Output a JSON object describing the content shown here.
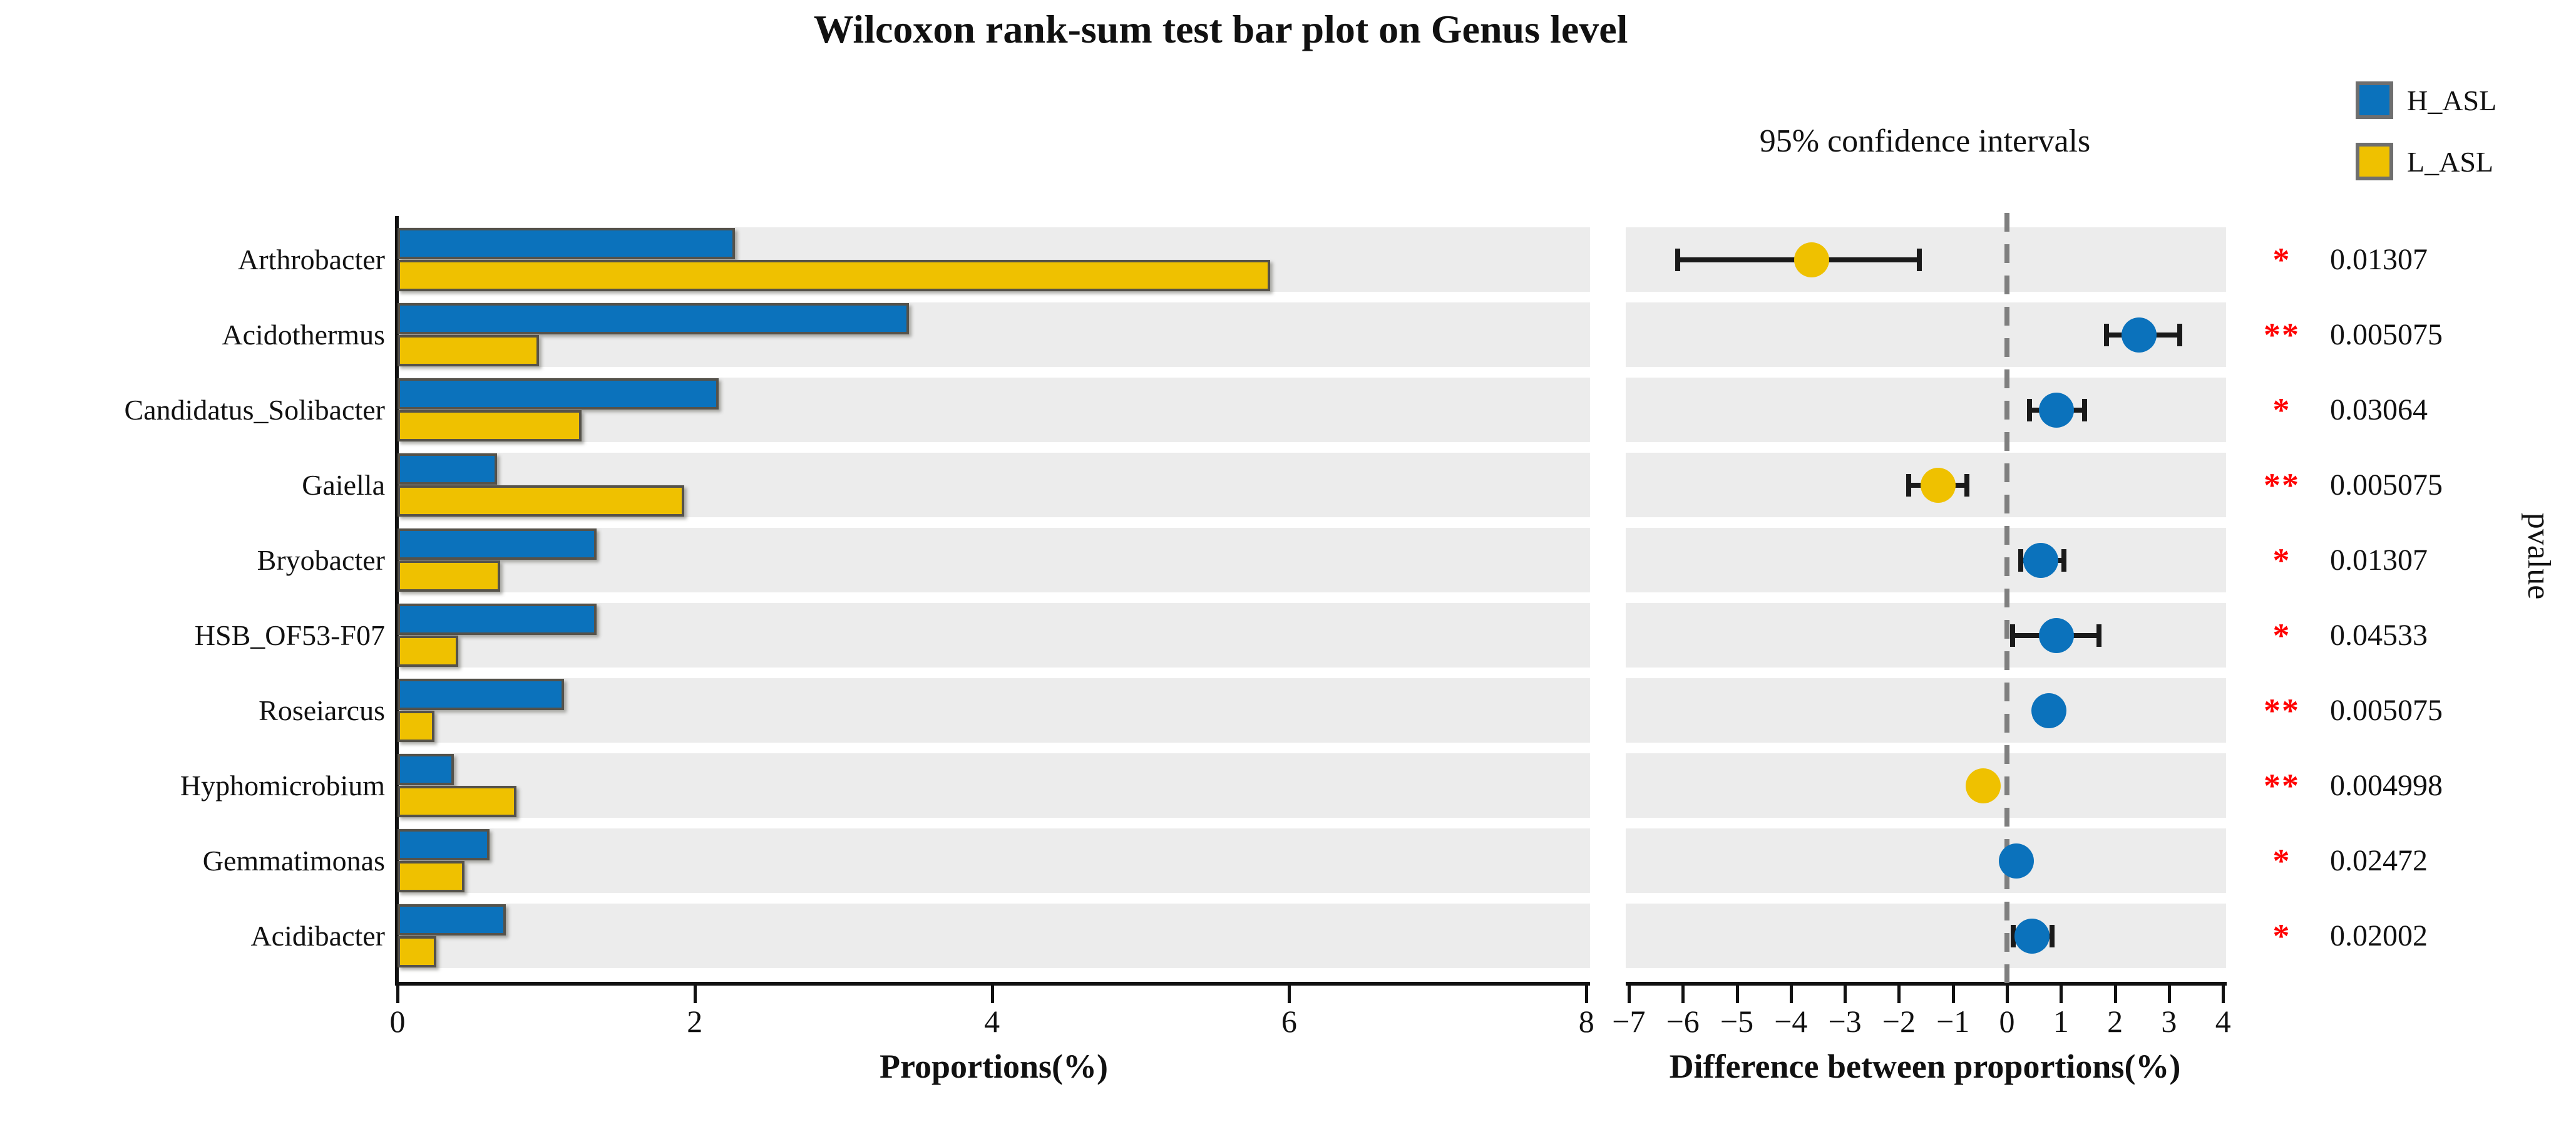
{
  "title": "Wilcoxon rank-sum test bar plot on Genus level",
  "colors": {
    "h_asl": "#0b72bc",
    "l_asl": "#efc100",
    "band": "#ececec",
    "significance": "#ff0000",
    "zero_line": "#7f7f7f",
    "bar_border": "#55524a"
  },
  "legend": {
    "items": [
      {
        "label": "H_ASL",
        "color": "#0b72bc"
      },
      {
        "label": "L_ASL",
        "color": "#efc100"
      }
    ]
  },
  "left_panel": {
    "xlabel": "Proportions(%)",
    "ticks": [
      0,
      2,
      4,
      6,
      8
    ],
    "xlim": [
      0,
      8
    ]
  },
  "right_panel": {
    "title": "95% confidence intervals",
    "xlabel": "Difference between proportions(%)",
    "ticks": [
      -7,
      -6,
      -5,
      -4,
      -3,
      -2,
      -1,
      0,
      1,
      2,
      3,
      4
    ],
    "xlim": [
      -7.1,
      4.1
    ]
  },
  "pvalue_axis_label": "pvalue",
  "chart_data": {
    "type": "bar",
    "orientation": "horizontal",
    "categories": [
      "Arthrobacter",
      "Acidothermus",
      "Candidatus_Solibacter",
      "Gaiella",
      "Bryobacter",
      "HSB_OF53-F07",
      "Roseiarcus",
      "Hyphomicrobium",
      "Gemmatimonas",
      "Acidibacter"
    ],
    "series": [
      {
        "name": "H_ASL",
        "values": [
          2.27,
          3.44,
          2.16,
          0.67,
          1.34,
          1.34,
          1.12,
          0.38,
          0.62,
          0.73
        ]
      },
      {
        "name": "L_ASL",
        "values": [
          5.87,
          0.95,
          1.24,
          1.93,
          0.69,
          0.41,
          0.25,
          0.8,
          0.45,
          0.26
        ]
      }
    ],
    "difference": {
      "values": [
        -3.62,
        2.45,
        0.92,
        -1.28,
        0.63,
        0.92,
        0.78,
        -0.44,
        0.17,
        0.46
      ],
      "ci_low": [
        -6.1,
        1.84,
        0.42,
        -1.82,
        0.25,
        0.1,
        0.6,
        -0.6,
        0.04,
        0.12
      ],
      "ci_high": [
        -1.62,
        3.2,
        1.44,
        -0.74,
        1.05,
        1.7,
        0.96,
        -0.28,
        0.3,
        0.84
      ],
      "dot_group": [
        "L_ASL",
        "H_ASL",
        "H_ASL",
        "L_ASL",
        "H_ASL",
        "H_ASL",
        "H_ASL",
        "L_ASL",
        "H_ASL",
        "H_ASL"
      ]
    },
    "significance": [
      "*",
      "**",
      "*",
      "**",
      "*",
      "*",
      "**",
      "**",
      "*",
      "*"
    ],
    "pvalues": [
      "0.01307",
      "0.005075",
      "0.03064",
      "0.005075",
      "0.01307",
      "0.04533",
      "0.005075",
      "0.004998",
      "0.02472",
      "0.02002"
    ]
  }
}
